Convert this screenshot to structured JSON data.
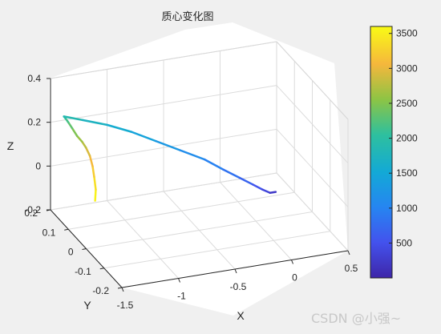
{
  "watermark": "CSDN @小强~",
  "chart_data": {
    "type": "line3d",
    "title": "质心变化图",
    "xlabel": "X",
    "ylabel": "Y",
    "zlabel": "Z",
    "xlim": [
      -1.5,
      0.5
    ],
    "ylim": [
      -0.2,
      0.2
    ],
    "zlim": [
      -0.2,
      0.4
    ],
    "xticks": [
      "-1.5",
      "-1",
      "-0.5",
      "0",
      "0.5"
    ],
    "yticks": [
      "-0.2",
      "-0.1",
      "0",
      "0.1",
      "0.2"
    ],
    "zticks": [
      "-0.2",
      "0",
      "0.2",
      "0.4"
    ],
    "grid": true,
    "colorbar": {
      "range": [
        1,
        3600
      ],
      "ticks": [
        "500",
        "1000",
        "1500",
        "2000",
        "2500",
        "3000",
        "3500"
      ],
      "colormap": "parula"
    },
    "series": [
      {
        "points": [
          {
            "x": -1.2,
            "y": 0.14,
            "z": -0.13,
            "c": 3600
          },
          {
            "x": -1.21,
            "y": 0.13,
            "z": -0.07,
            "c": 3450
          },
          {
            "x": -1.24,
            "y": 0.12,
            "z": 0.0,
            "c": 3300
          },
          {
            "x": -1.27,
            "y": 0.11,
            "z": 0.06,
            "c": 3150
          },
          {
            "x": -1.31,
            "y": 0.1,
            "z": 0.12,
            "c": 3000
          },
          {
            "x": -1.36,
            "y": 0.09,
            "z": 0.17,
            "c": 2850
          },
          {
            "x": -1.41,
            "y": 0.08,
            "z": 0.21,
            "c": 2700
          },
          {
            "x": -1.47,
            "y": 0.07,
            "z": 0.25,
            "c": 2550
          },
          {
            "x": -1.53,
            "y": 0.06,
            "z": 0.3,
            "c": 2400
          },
          {
            "x": -1.58,
            "y": 0.05,
            "z": 0.34,
            "c": 2250
          },
          {
            "x": -1.62,
            "y": 0.04,
            "z": 0.37,
            "c": 2100
          },
          {
            "x": -1.65,
            "y": 0.03,
            "z": 0.39,
            "c": 1950
          },
          {
            "x": -1.5,
            "y": 0.02,
            "z": 0.37,
            "c": 1800
          },
          {
            "x": -1.3,
            "y": 0.01,
            "z": 0.34,
            "c": 1650
          },
          {
            "x": -1.1,
            "y": 0.0,
            "z": 0.3,
            "c": 1500
          },
          {
            "x": -0.9,
            "y": -0.01,
            "z": 0.25,
            "c": 1350
          },
          {
            "x": -0.7,
            "y": -0.02,
            "z": 0.2,
            "c": 1200
          },
          {
            "x": -0.5,
            "y": -0.03,
            "z": 0.15,
            "c": 1050
          },
          {
            "x": -0.35,
            "y": -0.04,
            "z": 0.1,
            "c": 900
          },
          {
            "x": -0.22,
            "y": -0.05,
            "z": 0.06,
            "c": 750
          },
          {
            "x": -0.12,
            "y": -0.06,
            "z": 0.03,
            "c": 600
          },
          {
            "x": -0.05,
            "y": -0.07,
            "z": 0.01,
            "c": 450
          },
          {
            "x": 0.0,
            "y": -0.08,
            "z": 0.0,
            "c": 300
          },
          {
            "x": 0.05,
            "y": -0.08,
            "z": 0.0,
            "c": 150
          }
        ]
      }
    ]
  }
}
